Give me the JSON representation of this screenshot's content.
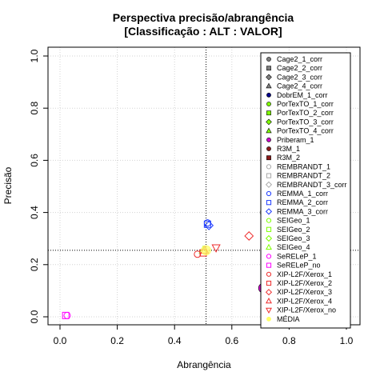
{
  "chart_data": {
    "type": "scatter",
    "title": "Perspectiva precisão/abrangência",
    "subtitle": "[Classificação : ALT : VALOR]",
    "xlabel": "Abrangência",
    "ylabel": "Precisão",
    "xlim": [
      0,
      1
    ],
    "ylim": [
      0,
      1
    ],
    "x_ticks": [
      "0.0",
      "0.2",
      "0.4",
      "0.6",
      "0.8",
      "1.0"
    ],
    "y_ticks": [
      "0.0",
      "0.2",
      "0.4",
      "0.6",
      "0.8",
      "1.0"
    ],
    "grid": true,
    "legend_position": "top-right",
    "reference_lines": {
      "x": 0.51,
      "y": 0.255
    },
    "series": [
      {
        "name": "Cage2_1_corr",
        "shape": "circle-filled",
        "color": "#808080",
        "x": null,
        "y": null
      },
      {
        "name": "Cage2_2_corr",
        "shape": "square-filled",
        "color": "#808080",
        "x": null,
        "y": null
      },
      {
        "name": "Cage2_3_corr",
        "shape": "diamond-filled",
        "color": "#808080",
        "x": null,
        "y": null
      },
      {
        "name": "Cage2_4_corr",
        "shape": "triangle-filled",
        "color": "#808080",
        "x": null,
        "y": null
      },
      {
        "name": "DobrEM_1_corr",
        "shape": "circle-filled",
        "color": "#00008b",
        "x": null,
        "y": null
      },
      {
        "name": "PorTexTO_1_corr",
        "shape": "circle-filled",
        "color": "#7fff00",
        "x": null,
        "y": null
      },
      {
        "name": "PorTexTO_2_corr",
        "shape": "square-filled",
        "color": "#7fff00",
        "x": null,
        "y": null
      },
      {
        "name": "PorTexTO_3_corr",
        "shape": "diamond-filled",
        "color": "#7fff00",
        "x": null,
        "y": null
      },
      {
        "name": "PorTexTO_4_corr",
        "shape": "triangle-filled",
        "color": "#7fff00",
        "x": null,
        "y": null
      },
      {
        "name": "Priberam_1",
        "shape": "circle-filled",
        "color": "#cc00cc",
        "x": 0.71,
        "y": 0.11,
        "size": 6
      },
      {
        "name": "R3M_1",
        "shape": "circle-filled",
        "color": "#8b1a1a",
        "x": null,
        "y": null
      },
      {
        "name": "R3M_2",
        "shape": "square-filled",
        "color": "#8b1a1a",
        "x": null,
        "y": null
      },
      {
        "name": "REMBRANDT_1",
        "shape": "circle-open",
        "color": "#a9a9a9",
        "x": 0.71,
        "y": 0.4
      },
      {
        "name": "REMBRANDT_2",
        "shape": "square-open",
        "color": "#a9a9a9",
        "x": null,
        "y": null
      },
      {
        "name": "REMBRANDT_3_corr",
        "shape": "diamond-open",
        "color": "#a9a9a9",
        "x": null,
        "y": null
      },
      {
        "name": "REMMA_1_corr",
        "shape": "circle-open",
        "color": "#1e3cff",
        "x": 0.515,
        "y": 0.36
      },
      {
        "name": "REMMA_2_corr",
        "shape": "square-open",
        "color": "#1e3cff",
        "x": 0.515,
        "y": 0.355
      },
      {
        "name": "REMMA_3_corr",
        "shape": "diamond-open",
        "color": "#1e3cff",
        "x": 0.52,
        "y": 0.35
      },
      {
        "name": "SEIGeo_1",
        "shape": "circle-open",
        "color": "#7fff00",
        "x": null,
        "y": null
      },
      {
        "name": "SEIGeo_2",
        "shape": "square-open",
        "color": "#7fff00",
        "x": null,
        "y": null
      },
      {
        "name": "SEIGeo_3",
        "shape": "diamond-open",
        "color": "#7fff00",
        "x": null,
        "y": null
      },
      {
        "name": "SEIGeo_4",
        "shape": "triangle-open",
        "color": "#7fff00",
        "x": 0.5,
        "y": 0.255
      },
      {
        "name": "SeRELeP_1",
        "shape": "circle-open",
        "color": "#ff00ff",
        "x": 0.025,
        "y": 0.005
      },
      {
        "name": "SeRELeP_no",
        "shape": "square-open",
        "color": "#ff00ff",
        "x": 0.02,
        "y": 0.005
      },
      {
        "name": "XIP-L2F/Xerox_1",
        "shape": "circle-open",
        "color": "#ee2c2c",
        "x": 0.48,
        "y": 0.24
      },
      {
        "name": "XIP-L2F/Xerox_2",
        "shape": "square-open",
        "color": "#ee2c2c",
        "x": 0.5,
        "y": 0.245
      },
      {
        "name": "XIP-L2F/Xerox_3",
        "shape": "diamond-open",
        "color": "#ee2c2c",
        "x": 0.66,
        "y": 0.31
      },
      {
        "name": "XIP-L2F/Xerox_4",
        "shape": "triangle-open",
        "color": "#ee2c2c",
        "x": 0.505,
        "y": 0.255
      },
      {
        "name": "XIP-L2F/Xerox_no",
        "shape": "triangle-down-open",
        "color": "#ee2c2c",
        "x": 0.545,
        "y": 0.265
      },
      {
        "name": "MÉDIA",
        "shape": "circle-filled",
        "color": "#ffff66",
        "x": 0.51,
        "y": 0.255,
        "size": 6
      }
    ]
  }
}
